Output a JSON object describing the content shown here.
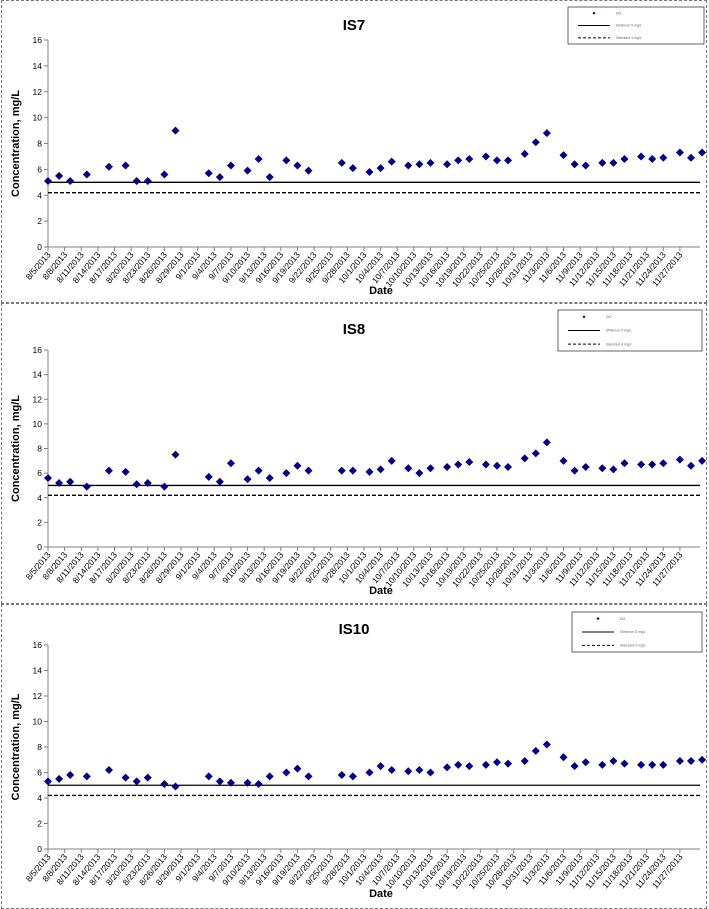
{
  "colors": {
    "marker": "#000080",
    "axis": "#808080",
    "line": "#000000"
  },
  "chart_data": [
    {
      "type": "scatter",
      "title": "IS7",
      "xlabel": "Date",
      "ylabel": "Concentration, mg/L",
      "ylim": [
        0,
        16
      ],
      "yticks": [
        0,
        2,
        4,
        6,
        8,
        10,
        12,
        14,
        16
      ],
      "xlim": [
        "8/5/2013",
        "11/29/2013"
      ],
      "xticks": [
        "8/5/2013",
        "8/8/2013",
        "8/11/2013",
        "8/14/2013",
        "8/17/2013",
        "8/20/2013",
        "8/23/2013",
        "8/26/2013",
        "8/29/2013",
        "9/1/2013",
        "9/4/2013",
        "9/7/2013",
        "9/10/2013",
        "9/13/2013",
        "9/16/2013",
        "9/19/2013",
        "9/22/2013",
        "9/25/2013",
        "9/28/2013",
        "10/1/2013",
        "10/4/2013",
        "10/7/2013",
        "10/10/2013",
        "10/13/2013",
        "10/16/2013",
        "10/19/2013",
        "10/22/2013",
        "10/25/2013",
        "10/28/2013",
        "10/31/2013",
        "11/3/2013",
        "11/6/2013",
        "11/9/2013",
        "11/12/2013",
        "11/15/2013",
        "11/18/2013",
        "11/21/2013",
        "11/24/2013",
        "11/27/2013"
      ],
      "grid": false,
      "legend": {
        "position": "top-right",
        "entries": [
          "DO",
          "Minimum 5 mg/L",
          "Standard 4 mg/L"
        ]
      },
      "hlines": [
        {
          "y": 5,
          "style": "solid"
        },
        {
          "y": 4.2,
          "style": "dashed"
        }
      ],
      "x": [
        "8/5/2013",
        "8/7/2013",
        "8/9/2013",
        "8/12/2013",
        "8/16/2013",
        "8/19/2013",
        "8/21/2013",
        "8/23/2013",
        "8/26/2013",
        "8/28/2013",
        "9/3/2013",
        "9/5/2013",
        "9/7/2013",
        "9/10/2013",
        "9/12/2013",
        "9/14/2013",
        "9/17/2013",
        "9/19/2013",
        "9/21/2013",
        "9/27/2013",
        "9/29/2013",
        "10/2/2013",
        "10/4/2013",
        "10/6/2013",
        "10/9/2013",
        "10/11/2013",
        "10/13/2013",
        "10/16/2013",
        "10/18/2013",
        "10/20/2013",
        "10/23/2013",
        "10/25/2013",
        "10/27/2013",
        "10/30/2013",
        "11/1/2013",
        "11/3/2013",
        "11/6/2013",
        "11/8/2013",
        "11/10/2013",
        "11/13/2013",
        "11/15/2013",
        "11/17/2013",
        "11/20/2013",
        "11/22/2013",
        "11/24/2013",
        "11/27/2013",
        "11/29/2013",
        "12/1/2013"
      ],
      "y": [
        5.1,
        5.5,
        5.1,
        5.6,
        6.2,
        6.3,
        5.1,
        5.1,
        5.6,
        9.0,
        5.7,
        5.4,
        6.3,
        5.9,
        6.8,
        5.4,
        6.7,
        6.3,
        5.9,
        6.5,
        6.1,
        5.8,
        6.1,
        6.6,
        6.3,
        6.4,
        6.5,
        6.4,
        6.7,
        6.8,
        7.0,
        6.7,
        6.7,
        7.2,
        8.1,
        8.8,
        7.1,
        6.4,
        6.3,
        6.5,
        6.5,
        6.8,
        7.0,
        6.8,
        6.9,
        7.3,
        6.9,
        7.3
      ]
    },
    {
      "type": "scatter",
      "title": "IS8",
      "xlabel": "Date",
      "ylabel": "Concentration, mg/L",
      "ylim": [
        0,
        16
      ],
      "yticks": [
        0,
        2,
        4,
        6,
        8,
        10,
        12,
        14,
        16
      ],
      "xlim": [
        "8/5/2013",
        "11/29/2013"
      ],
      "xticks": [
        "8/5/2013",
        "8/8/2013",
        "8/11/2013",
        "8/14/2013",
        "8/17/2013",
        "8/20/2013",
        "8/23/2013",
        "8/26/2013",
        "8/29/2013",
        "9/1/2013",
        "9/4/2013",
        "9/7/2013",
        "9/10/2013",
        "9/13/2013",
        "9/16/2013",
        "9/19/2013",
        "9/22/2013",
        "9/25/2013",
        "9/28/2013",
        "10/1/2013",
        "10/4/2013",
        "10/7/2013",
        "10/10/2013",
        "10/13/2013",
        "10/16/2013",
        "10/19/2013",
        "10/22/2013",
        "10/25/2013",
        "10/28/2013",
        "10/31/2013",
        "11/3/2013",
        "11/6/2013",
        "11/9/2013",
        "11/12/2013",
        "11/15/2013",
        "11/18/2013",
        "11/21/2013",
        "11/24/2013",
        "11/27/2013"
      ],
      "grid": false,
      "legend": {
        "position": "top-right",
        "entries": [
          "DO",
          "Minimum 5 mg/L",
          "Standard 4 mg/L"
        ]
      },
      "hlines": [
        {
          "y": 5,
          "style": "solid"
        },
        {
          "y": 4.2,
          "style": "dashed"
        }
      ],
      "x": [
        "8/5/2013",
        "8/7/2013",
        "8/9/2013",
        "8/12/2013",
        "8/16/2013",
        "8/19/2013",
        "8/21/2013",
        "8/23/2013",
        "8/26/2013",
        "8/28/2013",
        "9/3/2013",
        "9/5/2013",
        "9/7/2013",
        "9/10/2013",
        "9/12/2013",
        "9/14/2013",
        "9/17/2013",
        "9/19/2013",
        "9/21/2013",
        "9/27/2013",
        "9/29/2013",
        "10/2/2013",
        "10/4/2013",
        "10/6/2013",
        "10/9/2013",
        "10/11/2013",
        "10/13/2013",
        "10/16/2013",
        "10/18/2013",
        "10/20/2013",
        "10/23/2013",
        "10/25/2013",
        "10/27/2013",
        "10/30/2013",
        "11/1/2013",
        "11/3/2013",
        "11/6/2013",
        "11/8/2013",
        "11/10/2013",
        "11/13/2013",
        "11/15/2013",
        "11/17/2013",
        "11/20/2013",
        "11/22/2013",
        "11/24/2013",
        "11/27/2013",
        "11/29/2013",
        "12/1/2013"
      ],
      "y": [
        5.6,
        5.2,
        5.3,
        4.9,
        6.2,
        6.1,
        5.1,
        5.2,
        4.9,
        7.5,
        5.7,
        5.3,
        6.8,
        5.5,
        6.2,
        5.6,
        6.0,
        6.6,
        6.2,
        6.2,
        6.2,
        6.1,
        6.3,
        7.0,
        6.4,
        6.0,
        6.4,
        6.5,
        6.7,
        6.9,
        6.7,
        6.6,
        6.5,
        7.2,
        7.6,
        8.5,
        7.0,
        6.2,
        6.5,
        6.4,
        6.3,
        6.8,
        6.7,
        6.7,
        6.8,
        7.1,
        6.6,
        7.0
      ]
    },
    {
      "type": "scatter",
      "title": "IS10",
      "xlabel": "Date",
      "ylabel": "Concentration, mg/L",
      "ylim": [
        0,
        16
      ],
      "yticks": [
        0,
        2,
        4,
        6,
        8,
        10,
        12,
        14,
        16
      ],
      "xlim": [
        "8/5/2013",
        "11/29/2013"
      ],
      "xticks": [
        "8/5/2013",
        "8/8/2013",
        "8/11/2013",
        "8/14/2013",
        "8/17/2013",
        "8/20/2013",
        "8/23/2013",
        "8/26/2013",
        "8/29/2013",
        "9/1/2013",
        "9/4/2013",
        "9/7/2013",
        "9/10/2013",
        "9/13/2013",
        "9/16/2013",
        "9/19/2013",
        "9/22/2013",
        "9/25/2013",
        "9/28/2013",
        "10/1/2013",
        "10/4/2013",
        "10/7/2013",
        "10/10/2013",
        "10/13/2013",
        "10/16/2013",
        "10/19/2013",
        "10/22/2013",
        "10/25/2013",
        "10/28/2013",
        "10/31/2013",
        "11/3/2013",
        "11/6/2013",
        "11/9/2013",
        "11/12/2013",
        "11/15/2013",
        "11/18/2013",
        "11/21/2013",
        "11/24/2013",
        "11/27/2013"
      ],
      "grid": false,
      "legend": {
        "position": "top-right",
        "entries": [
          "DO",
          "Minimum 5 mg/L",
          "Standard 4 mg/L"
        ]
      },
      "hlines": [
        {
          "y": 5,
          "style": "solid"
        },
        {
          "y": 4.2,
          "style": "dashed"
        }
      ],
      "x": [
        "8/5/2013",
        "8/7/2013",
        "8/9/2013",
        "8/12/2013",
        "8/16/2013",
        "8/19/2013",
        "8/21/2013",
        "8/23/2013",
        "8/26/2013",
        "8/28/2013",
        "9/3/2013",
        "9/5/2013",
        "9/7/2013",
        "9/10/2013",
        "9/12/2013",
        "9/14/2013",
        "9/17/2013",
        "9/19/2013",
        "9/21/2013",
        "9/27/2013",
        "9/29/2013",
        "10/2/2013",
        "10/4/2013",
        "10/6/2013",
        "10/9/2013",
        "10/11/2013",
        "10/13/2013",
        "10/16/2013",
        "10/18/2013",
        "10/20/2013",
        "10/23/2013",
        "10/25/2013",
        "10/27/2013",
        "10/30/2013",
        "11/1/2013",
        "11/3/2013",
        "11/6/2013",
        "11/8/2013",
        "11/10/2013",
        "11/13/2013",
        "11/15/2013",
        "11/17/2013",
        "11/20/2013",
        "11/22/2013",
        "11/24/2013",
        "11/27/2013",
        "11/29/2013",
        "12/1/2013"
      ],
      "y": [
        5.3,
        5.5,
        5.8,
        5.7,
        6.2,
        5.6,
        5.3,
        5.6,
        5.1,
        4.9,
        5.7,
        5.3,
        5.2,
        5.2,
        5.1,
        5.7,
        6.0,
        6.3,
        5.7,
        5.8,
        5.7,
        6.0,
        6.5,
        6.2,
        6.1,
        6.2,
        6.0,
        6.4,
        6.6,
        6.5,
        6.6,
        6.8,
        6.7,
        6.9,
        7.7,
        8.2,
        7.2,
        6.5,
        6.8,
        6.6,
        6.9,
        6.7,
        6.6,
        6.6,
        6.6,
        6.9,
        6.9,
        7.0
      ]
    }
  ]
}
